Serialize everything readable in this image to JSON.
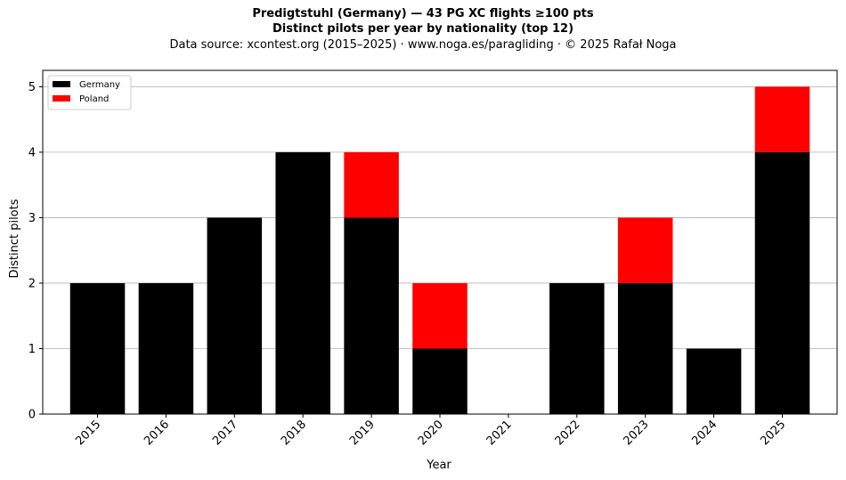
{
  "header": {
    "title_line1": "Predigtstuhl (Germany)  —  43 PG XC flights ≥100 pts",
    "title_line2": "Distinct pilots per year by nationality (top 12)",
    "subtitle": "Data source: xcontest.org (2015–2025)  ·  www.noga.es/paragliding  ·  © 2025 Rafał Noga"
  },
  "chart_data": {
    "type": "bar",
    "stacked": true,
    "title": "Predigtstuhl (Germany)  —  43 PG XC flights ≥100 pts\nDistinct pilots per year by nationality (top 12)",
    "subtitle": "Data source: xcontest.org (2015–2025)  ·  www.noga.es/paragliding  ·  © 2025 Rafał Noga",
    "xlabel": "Year",
    "ylabel": "Distinct pilots",
    "categories": [
      "2015",
      "2016",
      "2017",
      "2018",
      "2019",
      "2020",
      "2021",
      "2022",
      "2023",
      "2024",
      "2025"
    ],
    "series": [
      {
        "name": "Germany",
        "color": "#000000",
        "values": [
          2,
          2,
          3,
          4,
          3,
          1,
          0,
          2,
          2,
          1,
          4
        ]
      },
      {
        "name": "Poland",
        "color": "#ff0000",
        "values": [
          0,
          0,
          0,
          0,
          1,
          1,
          0,
          0,
          1,
          0,
          1
        ]
      }
    ],
    "ylim": [
      0,
      5.25
    ],
    "yticks": [
      0,
      1,
      2,
      3,
      4,
      5
    ],
    "grid": "y",
    "legend_position": "top-left"
  }
}
